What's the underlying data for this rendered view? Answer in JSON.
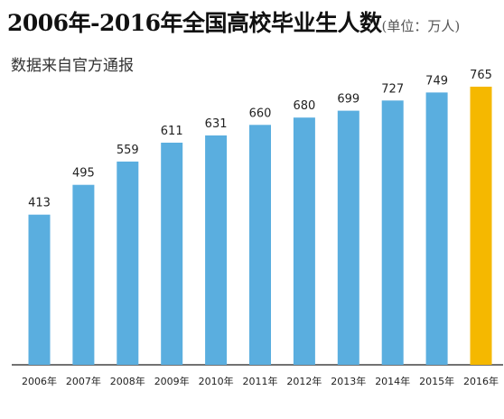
{
  "chart_data": {
    "type": "bar",
    "title": "2006年-2016年全国高校毕业生人数",
    "unit_note": "(单位：万人)",
    "subtitle": "数据来自官方通报",
    "categories": [
      "2006年",
      "2007年",
      "2008年",
      "2009年",
      "2010年",
      "2011年",
      "2012年",
      "2013年",
      "2014年",
      "2015年",
      "2016年"
    ],
    "values": [
      413,
      495,
      559,
      611,
      631,
      660,
      680,
      699,
      727,
      749,
      765
    ],
    "xlabel": "",
    "ylabel": "",
    "ylim": [
      0,
      765
    ],
    "grid": false,
    "legend": "none",
    "colors": {
      "bar": "#5aaedf",
      "highlight": "#f5b800",
      "axis": "#444444",
      "label": "#222222"
    },
    "highlight_category": "2016年"
  }
}
